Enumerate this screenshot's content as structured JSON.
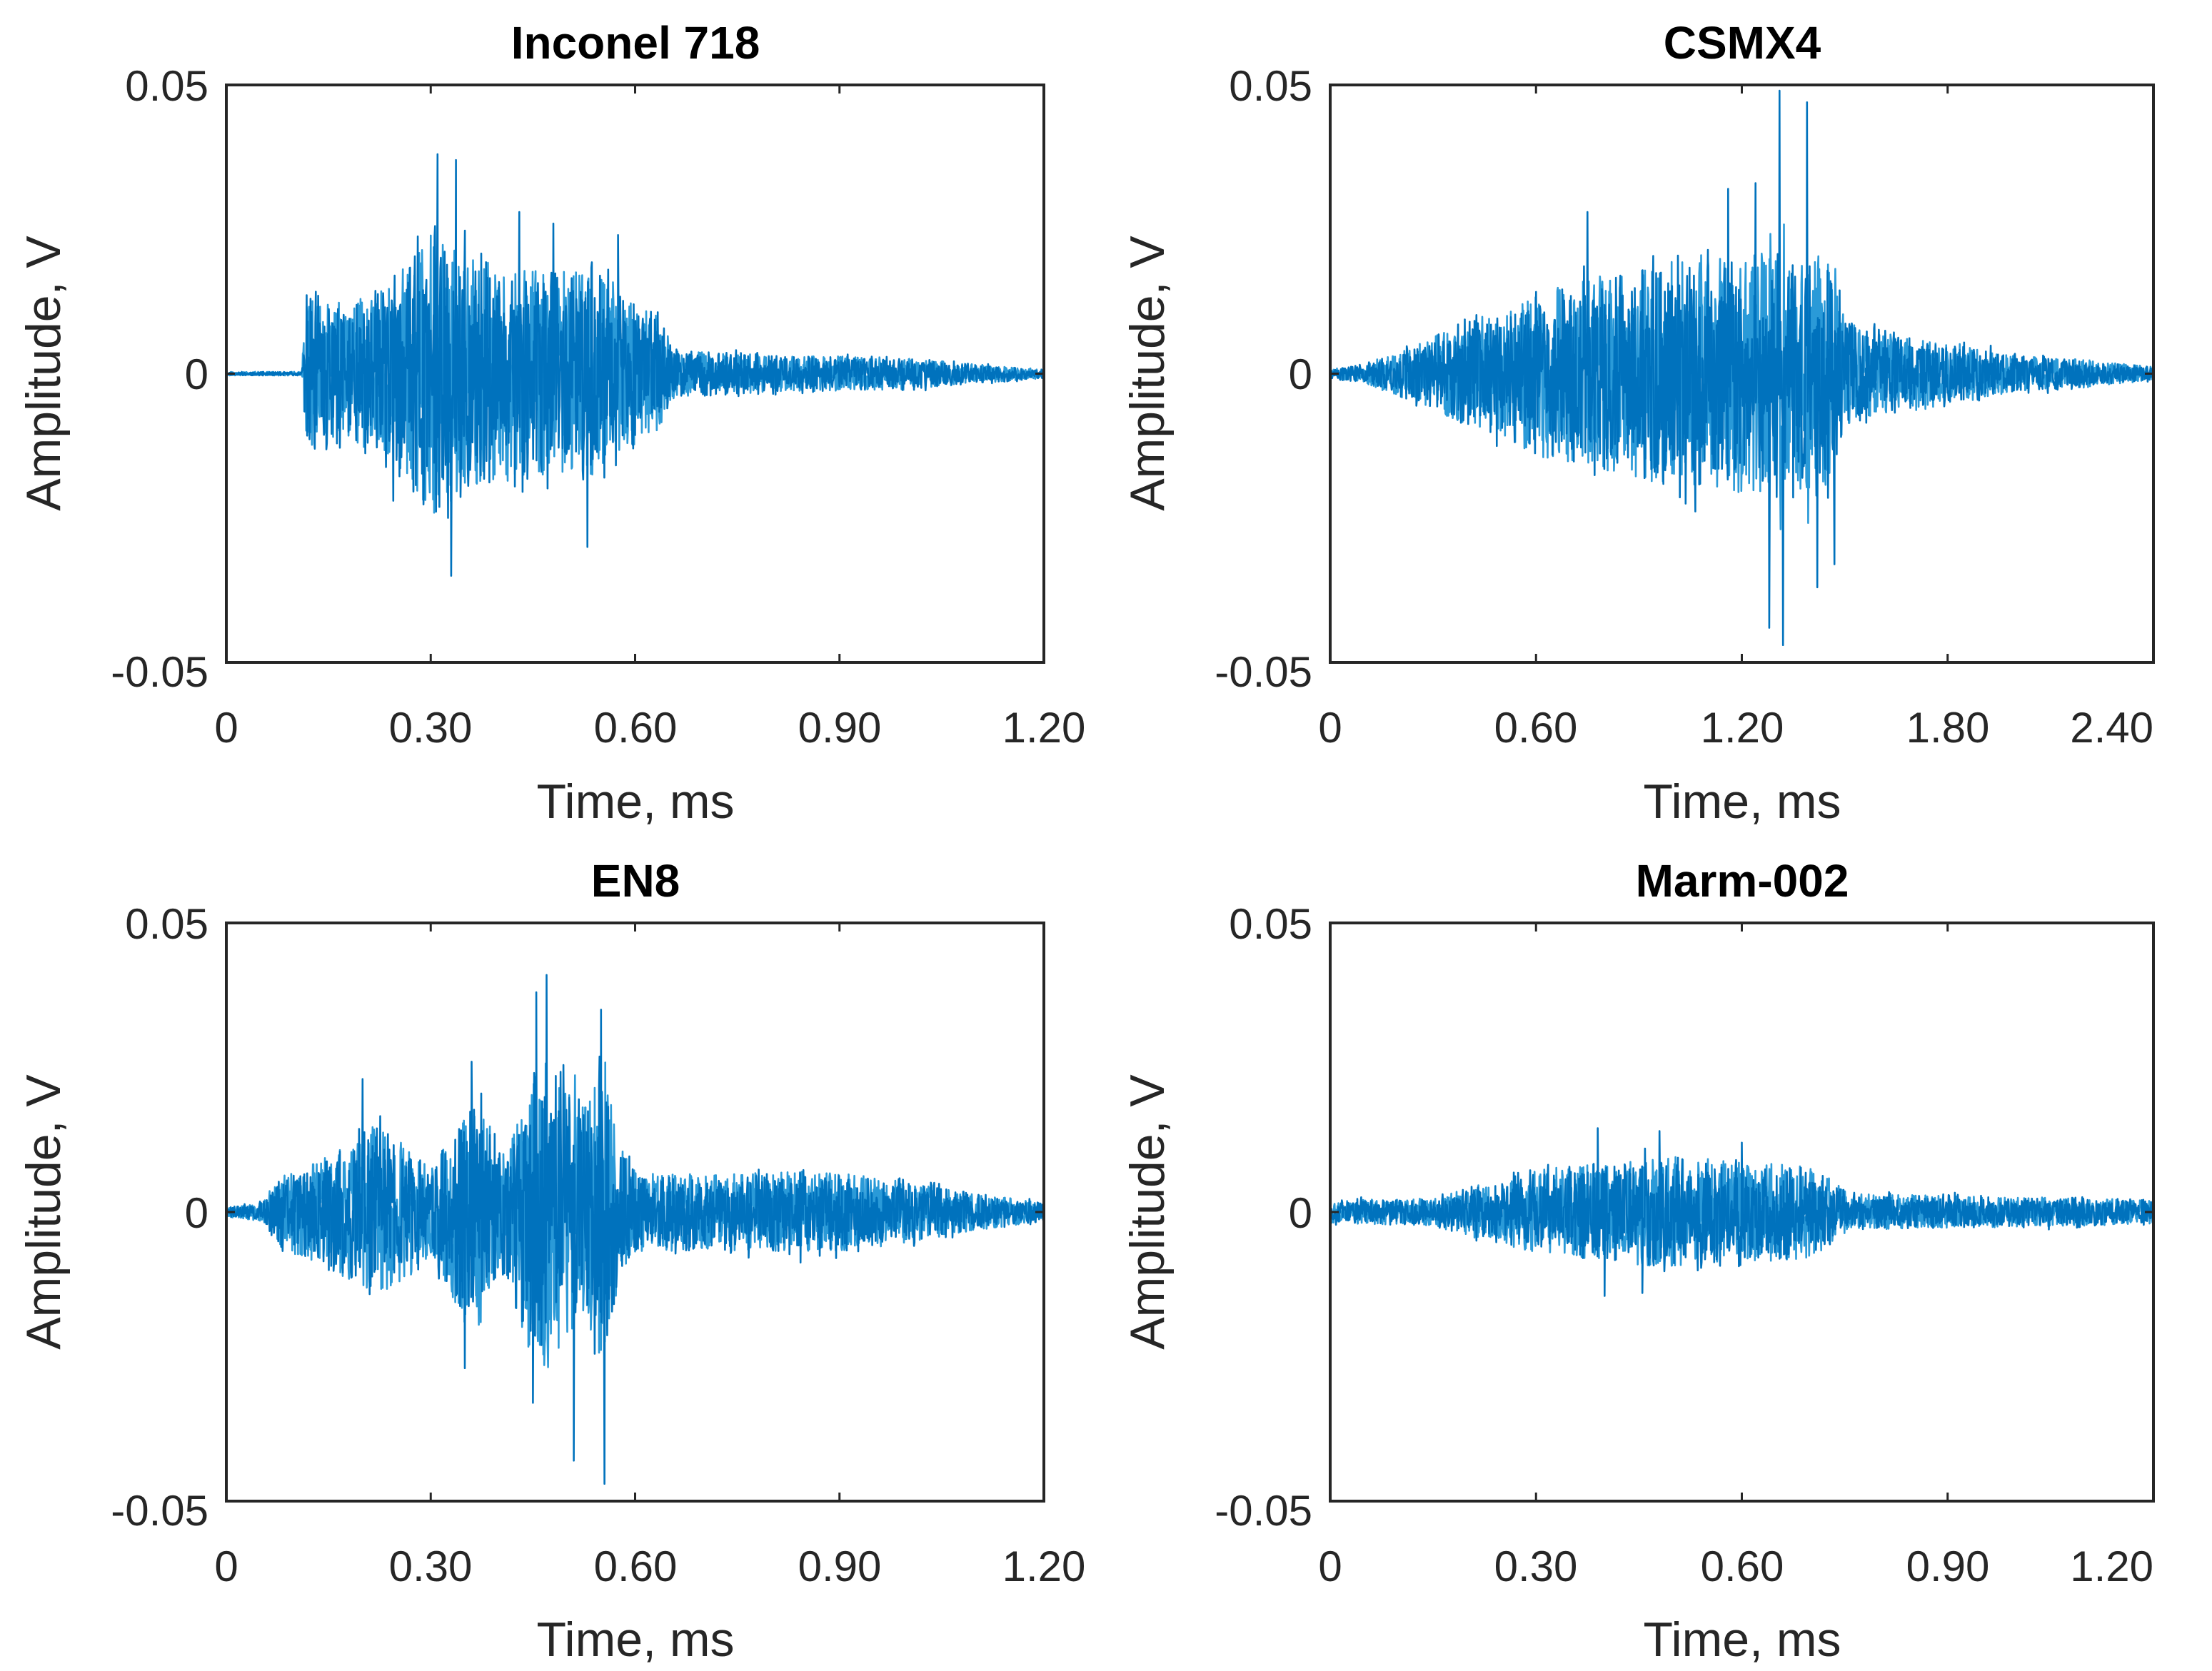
{
  "figure": {
    "line_color": "#0072BD",
    "line_color_light": "#2A9AD8"
  },
  "chart_data": [
    {
      "type": "line",
      "title": "Inconel 718",
      "xlabel": "Time, ms",
      "ylabel": "Amplitude, V",
      "xlim": [
        0,
        1.2
      ],
      "ylim": [
        -0.05,
        0.05
      ],
      "xticks": [
        0,
        0.3,
        0.6,
        0.9,
        1.2
      ],
      "xtick_labels": [
        "0",
        "0.30",
        "0.60",
        "0.90",
        "1.20"
      ],
      "yticks": [
        0.05,
        0,
        -0.05
      ],
      "ytick_labels": [
        "0.05",
        "0",
        "-0.05"
      ],
      "envelope": {
        "knots_x": [
          0,
          0.11,
          0.118,
          0.15,
          0.22,
          0.28,
          0.31,
          0.35,
          0.42,
          0.5,
          0.55,
          0.6,
          0.63,
          0.66,
          0.8,
          1.0,
          1.15,
          1.2
        ],
        "knots_y": [
          0.0004,
          0.0004,
          0.016,
          0.016,
          0.017,
          0.026,
          0.032,
          0.025,
          0.023,
          0.022,
          0.022,
          0.016,
          0.013,
          0.005,
          0.004,
          0.0035,
          0.0015,
          0.001
        ]
      },
      "peaks": [
        {
          "x": 0.31,
          "y": 0.038
        },
        {
          "x": 0.33,
          "y": -0.035
        },
        {
          "x": 0.337,
          "y": 0.037
        },
        {
          "x": 0.43,
          "y": 0.028
        },
        {
          "x": 0.48,
          "y": 0.026
        },
        {
          "x": 0.53,
          "y": -0.03
        },
        {
          "x": 0.245,
          "y": -0.022
        },
        {
          "x": 0.575,
          "y": 0.024
        }
      ],
      "seed": 11
    },
    {
      "type": "line",
      "title": "CSMX4",
      "xlabel": "Time, ms",
      "ylabel": "Amplitude, V",
      "xlim": [
        0,
        2.4
      ],
      "ylim": [
        -0.05,
        0.05
      ],
      "xticks": [
        0,
        0.6,
        1.2,
        1.8,
        2.4
      ],
      "xtick_labels": [
        "0",
        "0.60",
        "1.20",
        "1.80",
        "2.40"
      ],
      "yticks": [
        0.05,
        0,
        -0.05
      ],
      "ytick_labels": [
        "0.05",
        "0",
        "-0.05"
      ],
      "envelope": {
        "knots_x": [
          0,
          0.1,
          0.2,
          0.4,
          0.6,
          0.9,
          1.1,
          1.3,
          1.45,
          1.5,
          1.6,
          1.8,
          2.0,
          2.2,
          2.4
        ],
        "knots_y": [
          0.001,
          0.002,
          0.005,
          0.011,
          0.018,
          0.023,
          0.026,
          0.026,
          0.024,
          0.012,
          0.009,
          0.007,
          0.004,
          0.003,
          0.0015
        ]
      },
      "peaks": [
        {
          "x": 1.31,
          "y": 0.049
        },
        {
          "x": 1.39,
          "y": 0.047
        },
        {
          "x": 1.32,
          "y": -0.047
        },
        {
          "x": 1.28,
          "y": -0.044
        },
        {
          "x": 1.42,
          "y": -0.037
        },
        {
          "x": 1.16,
          "y": 0.032
        },
        {
          "x": 0.75,
          "y": 0.028
        },
        {
          "x": 1.24,
          "y": 0.033
        },
        {
          "x": 1.47,
          "y": -0.033
        }
      ],
      "seed": 23
    },
    {
      "type": "line",
      "title": "EN8",
      "xlabel": "Time, ms",
      "ylabel": "Amplitude, V",
      "xlim": [
        0,
        1.2
      ],
      "ylim": [
        -0.05,
        0.05
      ],
      "xticks": [
        0,
        0.3,
        0.6,
        0.9,
        1.2
      ],
      "xtick_labels": [
        "0",
        "0.30",
        "0.60",
        "0.90",
        "1.20"
      ],
      "yticks": [
        0.05,
        0,
        -0.05
      ],
      "ytick_labels": [
        "0.05",
        "0",
        "-0.05"
      ],
      "envelope": {
        "knots_x": [
          0,
          0.05,
          0.08,
          0.15,
          0.22,
          0.27,
          0.3,
          0.35,
          0.37,
          0.4,
          0.45,
          0.48,
          0.52,
          0.55,
          0.58,
          0.6,
          0.7,
          0.85,
          1.0,
          1.1,
          1.2
        ],
        "knots_y": [
          0.001,
          0.002,
          0.008,
          0.012,
          0.019,
          0.014,
          0.009,
          0.024,
          0.027,
          0.012,
          0.032,
          0.035,
          0.022,
          0.033,
          0.014,
          0.009,
          0.008,
          0.009,
          0.007,
          0.004,
          0.002
        ]
      },
      "peaks": [
        {
          "x": 0.47,
          "y": 0.041
        },
        {
          "x": 0.455,
          "y": 0.038
        },
        {
          "x": 0.55,
          "y": 0.035
        },
        {
          "x": 0.555,
          "y": -0.047
        },
        {
          "x": 0.51,
          "y": -0.043
        },
        {
          "x": 0.35,
          "y": -0.027
        },
        {
          "x": 0.45,
          "y": -0.033
        },
        {
          "x": 0.36,
          "y": 0.026
        },
        {
          "x": 0.2,
          "y": 0.023
        }
      ],
      "seed": 37
    },
    {
      "type": "line",
      "title": "Marm-002",
      "xlabel": "Time, ms",
      "ylabel": "Amplitude, V",
      "xlim": [
        0,
        1.2
      ],
      "ylim": [
        -0.05,
        0.05
      ],
      "xticks": [
        0,
        0.3,
        0.6,
        0.9,
        1.2
      ],
      "xtick_labels": [
        "0",
        "0.30",
        "0.60",
        "0.90",
        "1.20"
      ],
      "yticks": [
        0.05,
        0,
        -0.05
      ],
      "ytick_labels": [
        "0.05",
        "0",
        "-0.05"
      ],
      "envelope": {
        "knots_x": [
          0,
          0.15,
          0.22,
          0.3,
          0.4,
          0.5,
          0.6,
          0.7,
          0.76,
          0.9,
          1.1,
          1.2
        ],
        "knots_y": [
          0.0025,
          0.003,
          0.006,
          0.009,
          0.011,
          0.012,
          0.011,
          0.01,
          0.004,
          0.0035,
          0.003,
          0.0025
        ]
      },
      "peaks": [
        {
          "x": 0.39,
          "y": 0.0145
        },
        {
          "x": 0.48,
          "y": 0.014
        },
        {
          "x": 0.4,
          "y": -0.0145
        },
        {
          "x": 0.455,
          "y": -0.014
        },
        {
          "x": 0.6,
          "y": 0.012
        }
      ],
      "seed": 53
    }
  ]
}
